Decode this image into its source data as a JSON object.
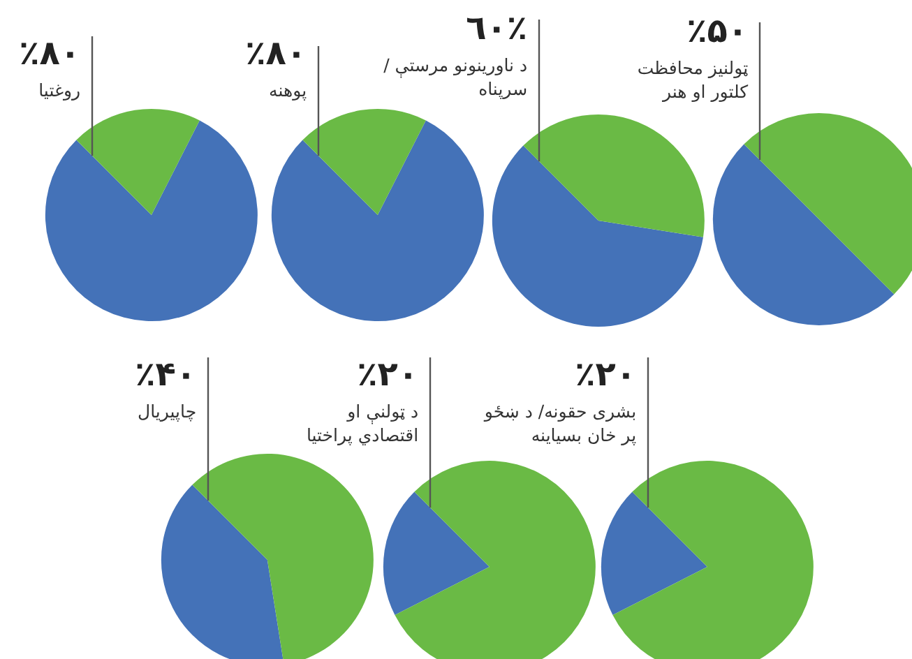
{
  "chart_data": [
    {
      "type": "pie",
      "title": "ټولنیز محافظت کلتور او هنر",
      "categories": [
        null,
        null
      ],
      "values": [
        50,
        50
      ],
      "colors": [
        "#4472b8",
        "#6aba45"
      ],
      "value_labels": [
        "٪۵۰",
        null
      ]
    },
    {
      "type": "pie",
      "title": "د ناورینونو مرستې /سرپناه",
      "categories": [
        null,
        null
      ],
      "values": [
        60,
        40
      ],
      "colors": [
        "#4472b8",
        "#6aba45"
      ],
      "value_labels": [
        "٪٦٠",
        null
      ]
    },
    {
      "type": "pie",
      "title": "پوهنه",
      "categories": [
        null,
        null
      ],
      "values": [
        80,
        20
      ],
      "colors": [
        "#4472b8",
        "#6aba45"
      ],
      "value_labels": [
        "٪۸۰",
        null
      ]
    },
    {
      "type": "pie",
      "title": "روغتیا",
      "categories": [
        null,
        null
      ],
      "values": [
        80,
        20
      ],
      "colors": [
        "#4472b8",
        "#6aba45"
      ],
      "value_labels": [
        "٪۸۰",
        null
      ]
    },
    {
      "type": "pie",
      "title": "بشری حقونه/ د ښځو پر خان بسیاینه",
      "categories": [
        null,
        null
      ],
      "values": [
        20,
        80
      ],
      "colors": [
        "#4472b8",
        "#6aba45"
      ],
      "value_labels": [
        "٪۲۰",
        null
      ]
    },
    {
      "type": "pie",
      "title": "د ټولنې او اقتصادي پراختیا",
      "categories": [
        null,
        null
      ],
      "values": [
        20,
        80
      ],
      "colors": [
        "#4472b8",
        "#6aba45"
      ],
      "value_labels": [
        "٪۲۰",
        null
      ]
    },
    {
      "type": "pie",
      "title": "چاپیریال",
      "categories": [
        null,
        null
      ],
      "values": [
        40,
        60
      ],
      "colors": [
        "#4472b8",
        "#6aba45"
      ],
      "value_labels": [
        "٪۴۰",
        null
      ]
    }
  ]
}
